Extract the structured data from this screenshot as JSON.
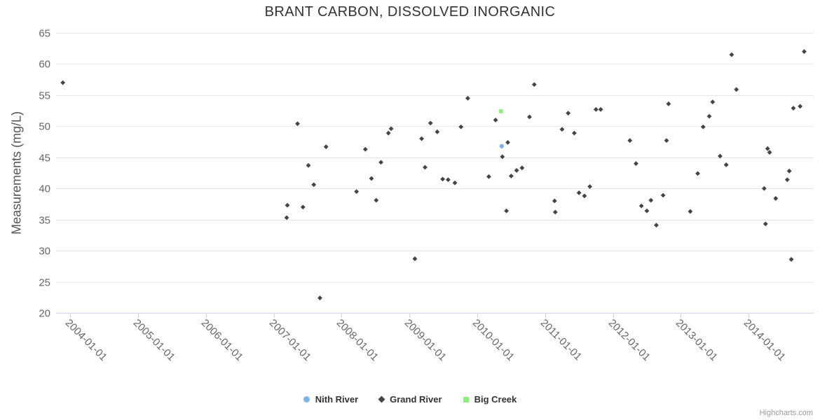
{
  "page": {
    "title": "BRANT CARBON, DISSOLVED INORGANIC",
    "credit": "Highcharts.com"
  },
  "legend": {
    "items": [
      {
        "label": "Nith River"
      },
      {
        "label": "Grand River"
      },
      {
        "label": "Big Creek"
      }
    ]
  },
  "colors": {
    "nith_river": "#7cb5ec",
    "grand_river": "#434348",
    "big_creek": "#90ed7d",
    "axis_line": "#ccd6eb",
    "grid_line": "#e6e6e6",
    "tick_label": "#666666",
    "title_text": "#333333"
  },
  "chart_data": {
    "type": "scatter",
    "title": "BRANT CARBON, DISSOLVED INORGANIC",
    "xlabel": "",
    "ylabel": "Measurements (mg/L)",
    "ylim": [
      20,
      65
    ],
    "yticks": [
      20,
      25,
      30,
      35,
      40,
      45,
      50,
      55,
      60,
      65
    ],
    "xlim": [
      2003.79,
      2014.96
    ],
    "xticks": [
      "2004-01-01",
      "2005-01-01",
      "2006-01-01",
      "2007-01-01",
      "2008-01-01",
      "2009-01-01",
      "2010-01-01",
      "2011-01-01",
      "2012-01-01",
      "2013-01-01",
      "2014-01-01"
    ],
    "grid": true,
    "legend_position": "bottom",
    "series": [
      {
        "name": "Nith River",
        "marker": "circle",
        "color": "#7cb5ec",
        "points": [
          [
            2010.36,
            46.8
          ]
        ]
      },
      {
        "name": "Grand River",
        "marker": "diamond",
        "color": "#434348",
        "points": [
          [
            2003.89,
            57.0
          ],
          [
            2007.19,
            35.3
          ],
          [
            2007.2,
            37.3
          ],
          [
            2007.35,
            50.4
          ],
          [
            2007.43,
            37.0
          ],
          [
            2007.51,
            43.7
          ],
          [
            2007.59,
            40.6
          ],
          [
            2007.68,
            22.4
          ],
          [
            2007.77,
            46.7
          ],
          [
            2008.22,
            39.5
          ],
          [
            2008.35,
            46.3
          ],
          [
            2008.44,
            41.6
          ],
          [
            2008.51,
            38.1
          ],
          [
            2008.58,
            44.2
          ],
          [
            2008.69,
            48.9
          ],
          [
            2008.73,
            49.6
          ],
          [
            2009.08,
            28.7
          ],
          [
            2009.18,
            48.0
          ],
          [
            2009.23,
            43.4
          ],
          [
            2009.31,
            50.5
          ],
          [
            2009.41,
            49.1
          ],
          [
            2009.49,
            41.5
          ],
          [
            2009.57,
            41.4
          ],
          [
            2009.67,
            40.9
          ],
          [
            2009.76,
            49.9
          ],
          [
            2009.86,
            54.5
          ],
          [
            2010.17,
            41.9
          ],
          [
            2010.27,
            51.0
          ],
          [
            2010.37,
            45.1
          ],
          [
            2010.43,
            36.4
          ],
          [
            2010.45,
            47.4
          ],
          [
            2010.5,
            42.0
          ],
          [
            2010.58,
            42.9
          ],
          [
            2010.66,
            43.3
          ],
          [
            2010.77,
            51.5
          ],
          [
            2010.84,
            56.7
          ],
          [
            2011.14,
            38.0
          ],
          [
            2011.15,
            36.2
          ],
          [
            2011.25,
            49.5
          ],
          [
            2011.34,
            52.1
          ],
          [
            2011.43,
            48.9
          ],
          [
            2011.5,
            39.3
          ],
          [
            2011.58,
            38.8
          ],
          [
            2011.66,
            40.3
          ],
          [
            2011.75,
            52.7
          ],
          [
            2011.82,
            52.7
          ],
          [
            2012.25,
            47.7
          ],
          [
            2012.34,
            44.0
          ],
          [
            2012.42,
            37.2
          ],
          [
            2012.5,
            36.4
          ],
          [
            2012.56,
            38.1
          ],
          [
            2012.64,
            34.1
          ],
          [
            2012.74,
            38.9
          ],
          [
            2012.79,
            47.7
          ],
          [
            2012.82,
            53.6
          ],
          [
            2013.14,
            36.3
          ],
          [
            2013.25,
            42.4
          ],
          [
            2013.33,
            49.9
          ],
          [
            2013.42,
            51.6
          ],
          [
            2013.47,
            53.9
          ],
          [
            2013.58,
            45.2
          ],
          [
            2013.67,
            43.8
          ],
          [
            2013.75,
            61.5
          ],
          [
            2013.82,
            55.9
          ],
          [
            2014.23,
            40.0
          ],
          [
            2014.25,
            34.3
          ],
          [
            2014.28,
            46.4
          ],
          [
            2014.31,
            45.8
          ],
          [
            2014.4,
            38.4
          ],
          [
            2014.57,
            41.4
          ],
          [
            2014.6,
            42.8
          ],
          [
            2014.63,
            28.6
          ],
          [
            2014.66,
            52.9
          ],
          [
            2014.76,
            53.2
          ],
          [
            2014.82,
            62.0
          ]
        ]
      },
      {
        "name": "Big Creek",
        "marker": "square",
        "color": "#90ed7d",
        "points": [
          [
            2010.35,
            52.4
          ]
        ]
      }
    ]
  }
}
